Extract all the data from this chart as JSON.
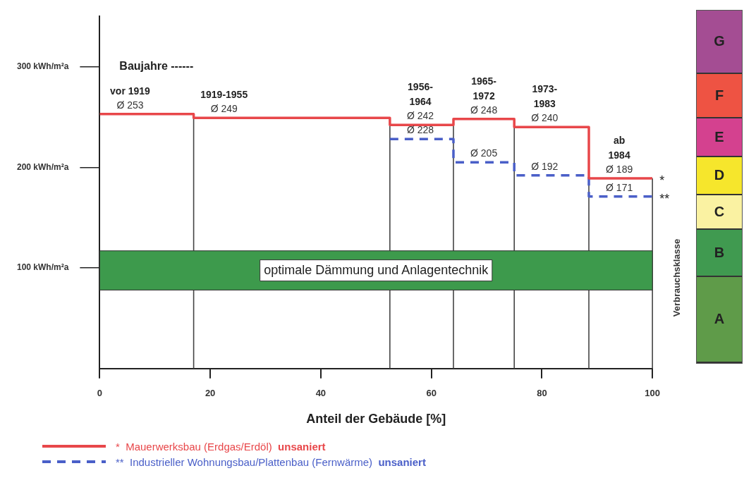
{
  "chart_data": [
    {
      "type": "step",
      "xlabel": "Anteil der Gebäude [%]",
      "x": [
        0,
        17,
        52.5,
        64,
        75,
        88.5,
        100
      ],
      "series": [
        {
          "name": "*  Mauerwerksbau (Erdgas/Erdöl)  unsaniert",
          "color": "#e8474a",
          "line_style": "solid",
          "values": [
            253,
            249,
            242,
            248,
            240,
            189,
            189
          ],
          "value_labels": [
            "Ø 253",
            "Ø 249",
            "Ø 242",
            "Ø 248",
            "Ø 240",
            "Ø 189",
            null
          ]
        },
        {
          "name": "**  Industrieller Wohnungsbau/Plattenbau (Fernwärme)  unsaniert",
          "color": "#4a5fc8",
          "line_style": "dashed",
          "x": [
            52.5,
            64,
            75,
            88.5,
            100
          ],
          "values": [
            228,
            205,
            192,
            171,
            171
          ],
          "value_labels": [
            "Ø 228",
            "Ø 205",
            "Ø 192",
            "Ø 171",
            null
          ]
        }
      ],
      "xlim": [
        0,
        100
      ],
      "xticks": [
        0,
        20,
        40,
        60,
        80,
        100
      ],
      "ylim": [
        0,
        350
      ],
      "yticks": [
        {
          "value": 100,
          "label": "100 kWh/m²a"
        },
        {
          "value": 200,
          "label": "200 kWh/m²a"
        },
        {
          "value": 300,
          "label": "300 kWh/m²a"
        }
      ],
      "bands": [
        {
          "axis": "y",
          "from": 78,
          "to": 117,
          "label": "optimale Dämmung und Anlagentechnik",
          "color": "#3d9a4c"
        }
      ],
      "ref_lines": [
        {
          "axis": "x",
          "value": 17,
          "color": "#444444"
        },
        {
          "axis": "x",
          "value": 52.5,
          "color": "#444444"
        },
        {
          "axis": "x",
          "value": 64,
          "color": "#444444"
        },
        {
          "axis": "x",
          "value": 75,
          "color": "#444444"
        },
        {
          "axis": "x",
          "value": 88.5,
          "color": "#444444"
        },
        {
          "axis": "x",
          "value": 100,
          "color": "#444444"
        }
      ],
      "annotations": [
        "Baujahre ------",
        "vor 1919",
        "1919-1955",
        "1956-\n1964",
        "1965-\n1972",
        "1973-\n1983",
        "ab\n1984",
        "*",
        "**"
      ],
      "grid": false,
      "marker": "none",
      "legend": "bottom"
    },
    {
      "type": "other",
      "title": "Verbrauchsklasse",
      "categories": [
        "G",
        "F",
        "E",
        "D",
        "C",
        "B",
        "A"
      ],
      "colors": [
        "#a44d93",
        "#ee5343",
        "#d4418f",
        "#f6e62c",
        "#faf2a2",
        "#409a50",
        "#5f9b49"
      ]
    }
  ]
}
